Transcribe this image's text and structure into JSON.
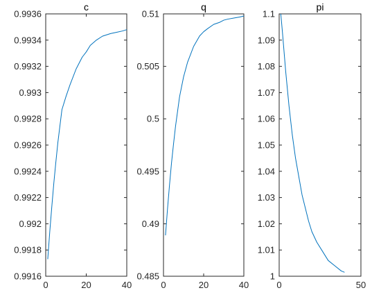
{
  "colors": {
    "line": "#0072BD",
    "axis": "#262626",
    "background": "#ffffff"
  },
  "chart_data": [
    {
      "type": "line",
      "title": "c",
      "xlim": [
        0,
        40
      ],
      "ylim": [
        0.9916,
        0.9936
      ],
      "xticks": [
        0,
        20,
        40
      ],
      "xtick_labels": [
        "0",
        "20",
        "40"
      ],
      "yticks": [
        0.9916,
        0.9918,
        0.992,
        0.9922,
        0.9924,
        0.9926,
        0.9928,
        0.993,
        0.9932,
        0.9934,
        0.9936
      ],
      "ytick_labels": [
        "0.9916",
        "0.9918",
        "0.992",
        "0.9922",
        "0.9924",
        "0.9926",
        "0.9928",
        "0.993",
        "0.9932",
        "0.9934",
        "0.9936"
      ],
      "grid": false,
      "series": [
        {
          "x": [
            1,
            2,
            3,
            4,
            5,
            6,
            8,
            10,
            12,
            15,
            18,
            20,
            22,
            25,
            28,
            30,
            32,
            35,
            38,
            40
          ],
          "y": [
            0.99173,
            0.99194,
            0.99213,
            0.99231,
            0.99247,
            0.99262,
            0.99287,
            0.99297,
            0.99306,
            0.99318,
            0.99327,
            0.99331,
            0.99336,
            0.9934,
            0.99343,
            0.99344,
            0.99345,
            0.99346,
            0.99347,
            0.99348
          ]
        }
      ]
    },
    {
      "type": "line",
      "title": "q",
      "xlim": [
        0,
        40
      ],
      "ylim": [
        0.485,
        0.51
      ],
      "xticks": [
        0,
        20,
        40
      ],
      "xtick_labels": [
        "0",
        "20",
        "40"
      ],
      "yticks": [
        0.485,
        0.49,
        0.495,
        0.5,
        0.505,
        0.51
      ],
      "ytick_labels": [
        "0.485",
        "0.49",
        "0.495",
        "0.5",
        "0.505",
        "0.51"
      ],
      "grid": false,
      "series": [
        {
          "x": [
            1,
            2,
            3,
            4,
            5,
            6,
            8,
            10,
            12,
            15,
            18,
            20,
            22,
            25,
            28,
            30,
            32,
            35,
            38,
            40
          ],
          "y": [
            0.4889,
            0.4914,
            0.4937,
            0.4958,
            0.4976,
            0.4993,
            0.5021,
            0.504,
            0.5054,
            0.5069,
            0.5079,
            0.5083,
            0.5086,
            0.509,
            0.5092,
            0.5094,
            0.5095,
            0.5096,
            0.5097,
            0.5098
          ]
        }
      ]
    },
    {
      "type": "line",
      "title": "pi",
      "xlim": [
        0,
        50
      ],
      "ylim": [
        1,
        1.1
      ],
      "xticks": [
        0,
        50
      ],
      "xtick_labels": [
        "0",
        "50"
      ],
      "yticks": [
        1,
        1.01,
        1.02,
        1.03,
        1.04,
        1.05,
        1.06,
        1.07,
        1.08,
        1.09,
        1.1
      ],
      "ytick_labels": [
        "1",
        "1.01",
        "1.02",
        "1.03",
        "1.04",
        "1.05",
        "1.06",
        "1.07",
        "1.08",
        "1.09",
        "1.1"
      ],
      "grid": false,
      "series": [
        {
          "x": [
            1,
            2,
            4,
            6,
            8,
            10,
            12,
            14,
            16,
            18,
            20,
            23,
            26,
            30,
            34,
            38,
            40
          ],
          "y": [
            1.1,
            1.093,
            1.078,
            1.065,
            1.054,
            1.045,
            1.038,
            1.031,
            1.026,
            1.021,
            1.017,
            1.013,
            1.01,
            1.006,
            1.004,
            1.002,
            1.0015
          ]
        }
      ]
    }
  ]
}
